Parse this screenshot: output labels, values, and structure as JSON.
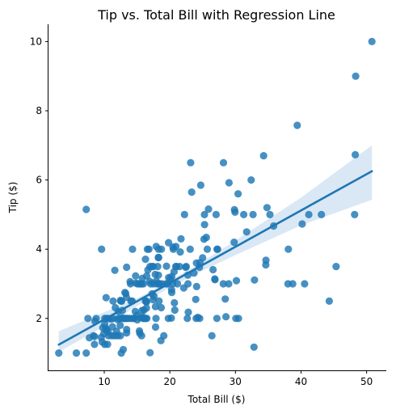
{
  "chart_data": {
    "type": "scatter",
    "title": "Tip vs. Total Bill with Regression Line",
    "xlabel": "Total Bill ($)",
    "ylabel": "Tip ($)",
    "xlim": [
      1.5,
      53.0
    ],
    "ylim": [
      0.5,
      10.5
    ],
    "xticks": [
      10,
      20,
      30,
      40,
      50
    ],
    "yticks": [
      2,
      4,
      6,
      8,
      10
    ],
    "xtick_labels": [
      "10",
      "20",
      "30",
      "40",
      "50"
    ],
    "ytick_labels": [
      "2",
      "4",
      "6",
      "8",
      "10"
    ],
    "grid": false,
    "colors": {
      "points": "#1f77b4",
      "line": "#1f77b4",
      "band": "#c6dbef"
    },
    "series": [
      {
        "points": [
          [
            3.07,
            1.0
          ],
          [
            5.75,
            1.0
          ],
          [
            7.25,
            1.0
          ],
          [
            7.25,
            5.15
          ],
          [
            7.51,
            2.0
          ],
          [
            7.74,
            1.44
          ],
          [
            8.35,
            1.5
          ],
          [
            8.52,
            1.48
          ],
          [
            8.51,
            1.25
          ],
          [
            8.58,
            1.92
          ],
          [
            8.77,
            2.0
          ],
          [
            9.55,
            1.45
          ],
          [
            9.6,
            4.0
          ],
          [
            9.68,
            1.32
          ],
          [
            9.78,
            1.73
          ],
          [
            9.94,
            1.56
          ],
          [
            10.07,
            1.25
          ],
          [
            10.07,
            1.83
          ],
          [
            10.09,
            2.0
          ],
          [
            10.27,
            1.71
          ],
          [
            10.29,
            2.6
          ],
          [
            10.33,
            1.67
          ],
          [
            10.34,
            1.66
          ],
          [
            10.34,
            2.0
          ],
          [
            10.51,
            1.25
          ],
          [
            10.59,
            1.61
          ],
          [
            10.63,
            2.0
          ],
          [
            10.65,
            1.5
          ],
          [
            11.02,
            1.98
          ],
          [
            11.17,
            1.5
          ],
          [
            11.24,
            1.76
          ],
          [
            11.35,
            2.5
          ],
          [
            11.38,
            2.0
          ],
          [
            11.59,
            1.5
          ],
          [
            11.61,
            3.39
          ],
          [
            11.69,
            2.31
          ],
          [
            11.87,
            1.63
          ],
          [
            12.02,
            1.97
          ],
          [
            12.03,
            1.5
          ],
          [
            12.16,
            2.2
          ],
          [
            12.26,
            2.0
          ],
          [
            12.43,
            1.8
          ],
          [
            12.46,
            1.5
          ],
          [
            12.48,
            2.52
          ],
          [
            12.54,
            2.5
          ],
          [
            12.6,
            1.0
          ],
          [
            12.66,
            2.5
          ],
          [
            12.69,
            2.0
          ],
          [
            12.74,
            2.01
          ],
          [
            12.76,
            2.23
          ],
          [
            12.9,
            1.1
          ],
          [
            13.0,
            2.0
          ],
          [
            13.03,
            2.0
          ],
          [
            13.13,
            2.0
          ],
          [
            13.16,
            2.75
          ],
          [
            13.28,
            2.72
          ],
          [
            13.37,
            2.0
          ],
          [
            13.39,
            2.61
          ],
          [
            13.42,
            1.58
          ],
          [
            13.42,
            3.48
          ],
          [
            13.42,
            1.68
          ],
          [
            13.51,
            2.0
          ],
          [
            13.81,
            2.0
          ],
          [
            13.94,
            3.06
          ],
          [
            14.0,
            3.0
          ],
          [
            14.07,
            2.5
          ],
          [
            14.15,
            2.0
          ],
          [
            14.26,
            2.5
          ],
          [
            14.31,
            4.0
          ],
          [
            14.48,
            2.0
          ],
          [
            14.52,
            2.0
          ],
          [
            14.73,
            2.2
          ],
          [
            14.78,
            3.23
          ],
          [
            14.83,
            3.02
          ],
          [
            15.01,
            2.09
          ],
          [
            15.04,
            1.96
          ],
          [
            15.06,
            3.0
          ],
          [
            15.36,
            1.64
          ],
          [
            15.38,
            3.0
          ],
          [
            15.42,
            1.57
          ],
          [
            15.48,
            2.02
          ],
          [
            15.53,
            3.0
          ],
          [
            15.69,
            1.5
          ],
          [
            15.69,
            3.0
          ],
          [
            15.77,
            2.23
          ],
          [
            15.81,
            3.16
          ],
          [
            15.95,
            2.0
          ],
          [
            15.98,
            2.03
          ],
          [
            15.98,
            3.0
          ],
          [
            16.0,
            2.0
          ],
          [
            16.04,
            2.24
          ],
          [
            16.21,
            2.0
          ],
          [
            16.27,
            2.5
          ],
          [
            16.29,
            3.71
          ],
          [
            16.31,
            2.0
          ],
          [
            16.4,
            2.5
          ],
          [
            16.43,
            2.3
          ],
          [
            16.45,
            2.47
          ],
          [
            16.47,
            3.23
          ],
          [
            16.49,
            2.0
          ],
          [
            16.58,
            4.0
          ],
          [
            16.66,
            3.4
          ],
          [
            16.82,
            4.0
          ],
          [
            16.93,
            3.07
          ],
          [
            16.97,
            3.5
          ],
          [
            16.99,
            1.01
          ],
          [
            17.07,
            3.0
          ],
          [
            17.29,
            2.71
          ],
          [
            17.31,
            3.5
          ],
          [
            17.46,
            2.54
          ],
          [
            17.47,
            3.5
          ],
          [
            17.51,
            3.0
          ],
          [
            17.59,
            2.64
          ],
          [
            17.78,
            3.27
          ],
          [
            17.81,
            2.34
          ],
          [
            17.82,
            1.75
          ],
          [
            17.89,
            2.0
          ],
          [
            17.92,
            4.08
          ],
          [
            17.92,
            3.08
          ],
          [
            18.04,
            3.0
          ],
          [
            18.15,
            3.5
          ],
          [
            18.24,
            3.76
          ],
          [
            18.26,
            3.25
          ],
          [
            18.28,
            4.0
          ],
          [
            18.29,
            3.76
          ],
          [
            18.29,
            3.0
          ],
          [
            18.35,
            2.5
          ],
          [
            18.43,
            3.0
          ],
          [
            18.64,
            1.36
          ],
          [
            18.69,
            2.31
          ],
          [
            18.71,
            4.0
          ],
          [
            18.78,
            3.0
          ],
          [
            19.08,
            1.5
          ],
          [
            19.44,
            3.0
          ],
          [
            19.49,
            3.51
          ],
          [
            19.65,
            3.0
          ],
          [
            19.77,
            2.0
          ],
          [
            19.81,
            4.19
          ],
          [
            19.82,
            3.18
          ],
          [
            20.08,
            3.15
          ],
          [
            20.23,
            2.01
          ],
          [
            20.27,
            2.83
          ],
          [
            20.29,
            2.75
          ],
          [
            20.29,
            3.21
          ],
          [
            20.45,
            3.0
          ],
          [
            20.49,
            4.06
          ],
          [
            20.53,
            4.0
          ],
          [
            20.65,
            3.35
          ],
          [
            20.69,
            2.45
          ],
          [
            20.76,
            2.24
          ],
          [
            20.9,
            3.5
          ],
          [
            20.92,
            4.08
          ],
          [
            21.01,
            3.5
          ],
          [
            21.16,
            3.0
          ],
          [
            21.5,
            3.5
          ],
          [
            21.58,
            3.92
          ],
          [
            21.7,
            4.3
          ],
          [
            22.12,
            2.88
          ],
          [
            22.23,
            5.0
          ],
          [
            22.42,
            3.48
          ],
          [
            22.49,
            3.5
          ],
          [
            22.67,
            2.0
          ],
          [
            22.75,
            3.25
          ],
          [
            22.76,
            3.0
          ],
          [
            22.82,
            2.18
          ],
          [
            23.1,
            4.0
          ],
          [
            23.17,
            6.5
          ],
          [
            23.33,
            5.65
          ],
          [
            23.68,
            3.31
          ],
          [
            23.95,
            2.55
          ],
          [
            24.01,
            2.0
          ],
          [
            24.06,
            3.6
          ],
          [
            24.08,
            2.92
          ],
          [
            24.27,
            2.03
          ],
          [
            24.52,
            3.48
          ],
          [
            24.55,
            2.0
          ],
          [
            24.59,
            3.61
          ],
          [
            24.71,
            5.85
          ],
          [
            25.0,
            3.75
          ],
          [
            25.21,
            4.29
          ],
          [
            25.28,
            5.0
          ],
          [
            25.29,
            4.71
          ],
          [
            25.56,
            4.34
          ],
          [
            25.71,
            4.0
          ],
          [
            25.89,
            5.16
          ],
          [
            26.41,
            1.5
          ],
          [
            26.59,
            3.41
          ],
          [
            26.86,
            3.14
          ],
          [
            26.88,
            3.12
          ],
          [
            27.05,
            5.0
          ],
          [
            27.18,
            2.0
          ],
          [
            27.2,
            4.0
          ],
          [
            27.28,
            4.0
          ],
          [
            28.15,
            3.0
          ],
          [
            28.17,
            6.5
          ],
          [
            28.44,
            2.56
          ],
          [
            28.55,
            2.05
          ],
          [
            28.97,
            3.0
          ],
          [
            29.03,
            5.92
          ],
          [
            29.8,
            4.2
          ],
          [
            29.85,
            5.14
          ],
          [
            29.93,
            5.07
          ],
          [
            30.06,
            2.0
          ],
          [
            30.14,
            3.09
          ],
          [
            30.4,
            5.6
          ],
          [
            30.46,
            2.0
          ],
          [
            31.27,
            5.0
          ],
          [
            31.71,
            4.5
          ],
          [
            32.4,
            6.0
          ],
          [
            32.68,
            5.0
          ],
          [
            32.83,
            1.17
          ],
          [
            32.9,
            3.11
          ],
          [
            34.3,
            6.7
          ],
          [
            34.63,
            3.55
          ],
          [
            34.65,
            3.68
          ],
          [
            34.81,
            5.2
          ],
          [
            35.26,
            5.0
          ],
          [
            35.83,
            4.67
          ],
          [
            38.01,
            3.0
          ],
          [
            38.07,
            4.0
          ],
          [
            38.73,
            3.0
          ],
          [
            39.42,
            7.58
          ],
          [
            40.17,
            4.73
          ],
          [
            40.55,
            3.0
          ],
          [
            41.19,
            5.0
          ],
          [
            43.11,
            5.0
          ],
          [
            44.3,
            2.5
          ],
          [
            45.35,
            3.5
          ],
          [
            48.17,
            5.0
          ],
          [
            48.27,
            6.73
          ],
          [
            48.33,
            9.0
          ],
          [
            50.81,
            10.0
          ]
        ]
      }
    ],
    "regression": {
      "intercept": 0.92,
      "slope": 0.105,
      "x_range": [
        3.07,
        50.81
      ],
      "ci_band": [
        [
          3.07,
          1.03,
          1.63
        ],
        [
          10,
          1.77,
          2.18
        ],
        [
          15,
          2.36,
          2.58
        ],
        [
          20,
          2.89,
          3.09
        ],
        [
          25,
          3.38,
          3.65
        ],
        [
          30,
          3.83,
          4.25
        ],
        [
          40,
          4.69,
          5.49
        ],
        [
          50.81,
          5.43,
          7.0
        ]
      ]
    }
  }
}
